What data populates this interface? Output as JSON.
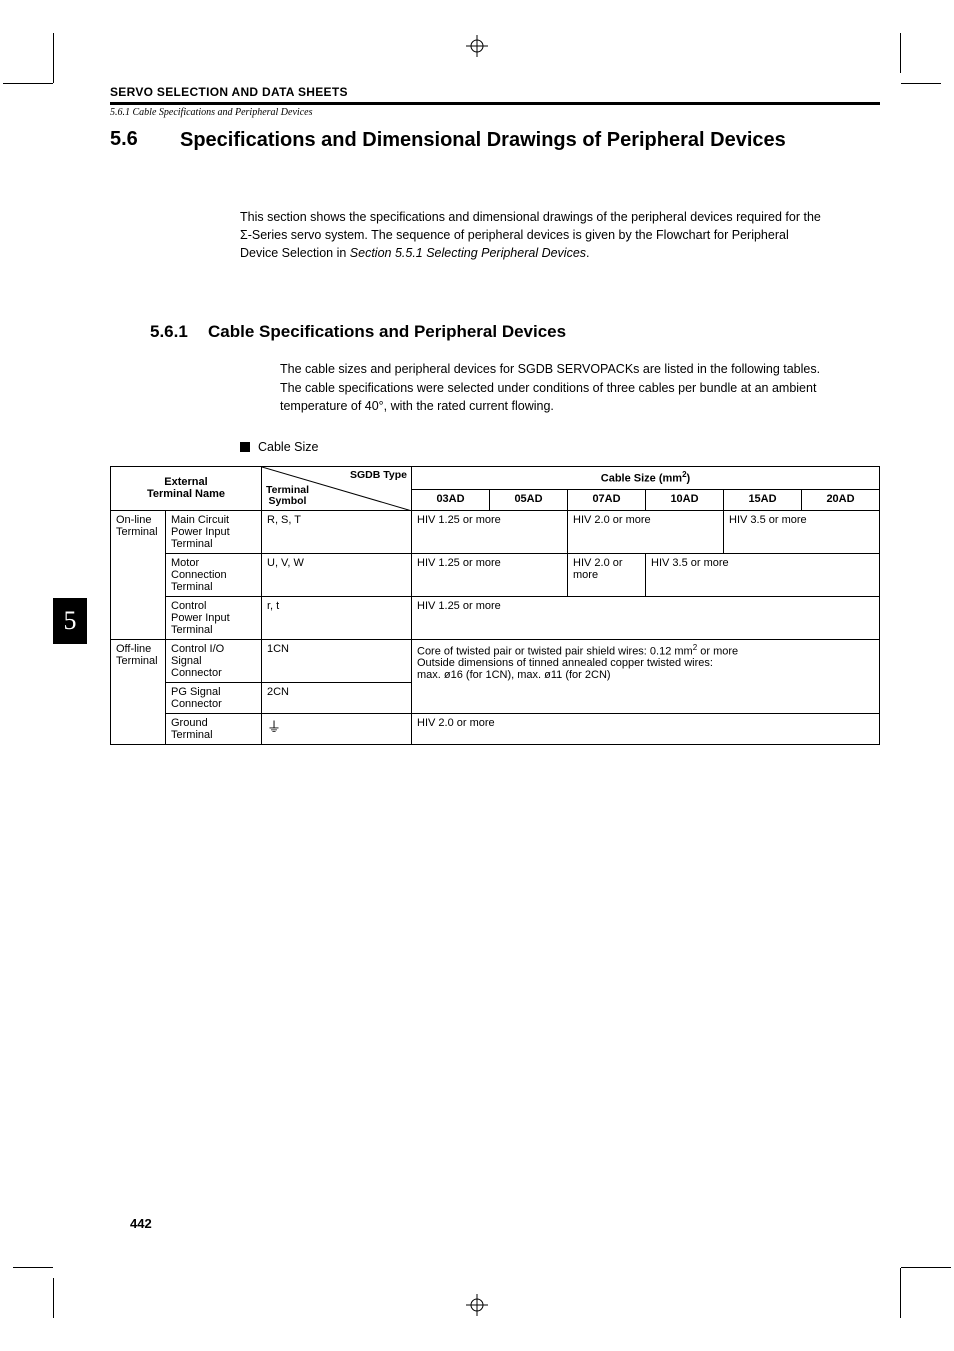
{
  "runningHead": "SERVO SELECTION AND DATA SHEETS",
  "breadcrumb": "5.6.1 Cable Specifications and Peripheral Devices",
  "section": {
    "num": "5.6",
    "title": "Specifications and Dimensional Drawings of Peripheral Devices"
  },
  "intro": {
    "t1": "This section shows the specifications and dimensional drawings of the peripheral devices required for the ",
    "sigma": "Σ",
    "t2": "-Series servo system. The sequence of peripheral devices is given by the Flowchart for Peripheral Device Selection in ",
    "ref": "Section 5.5.1 Selecting Peripheral Devices",
    "t3": "."
  },
  "sub": {
    "num": "5.6.1",
    "title": "Cable Specifications and Peripheral Devices"
  },
  "body": {
    "p1": "The cable sizes and peripheral devices for SGDB SERVOPACKs are listed in the following tables.",
    "p2": "The cable specifications were selected under conditions of three cables per bundle at an ambient temperature of 40°, with the rated current flowing."
  },
  "bullet": "Cable Size",
  "table": {
    "h_ext": "External\nTerminal Name",
    "h_sgdb": "SGDB Type",
    "h_term": "Terminal\nSymbol",
    "h_cable": "Cable Size (mm",
    "h_cable_sup": "2",
    "h_cable_end": ")",
    "cols": [
      "03AD",
      "05AD",
      "07AD",
      "10AD",
      "15AD",
      "20AD"
    ],
    "r1g": "On-line\nTerminal",
    "r1a": "Main Circuit\nPower Input\nTerminal",
    "r1s": "R, S, T",
    "r1c1": "HIV 1.25 or more",
    "r1c2": "HIV 2.0 or more",
    "r1c3": "HIV 3.5 or more",
    "r2a": "Motor\nConnection\nTerminal",
    "r2s": "U, V, W",
    "r2c1": "HIV 1.25 or more",
    "r2c2": "HIV 2.0 or\nmore",
    "r2c3": "HIV 3.5 or more",
    "r3a": "Control\nPower Input\nTerminal",
    "r3s": "r, t",
    "r3c": "HIV 1.25 or more",
    "r4g": "Off-line\nTerminal",
    "r4a": "Control I/O\nSignal\nConnector",
    "r4s": "1CN",
    "r4c_l1": "Core of twisted pair or twisted pair shield wires: 0.12 mm",
    "r4c_sup": "2",
    "r4c_l1b": " or more",
    "r4c_l2": "Outside dimensions of tinned annealed copper twisted wires:",
    "r4c_l3": "max. ø16 (for 1CN), max. ø11 (for 2CN)",
    "r5a": "PG Signal\nConnector",
    "r5s": "2CN",
    "r6a": "Ground\nTerminal",
    "r6s": "⏚",
    "r6c": "HIV 2.0 or more"
  },
  "sideTab": "5",
  "pageNum": "442"
}
